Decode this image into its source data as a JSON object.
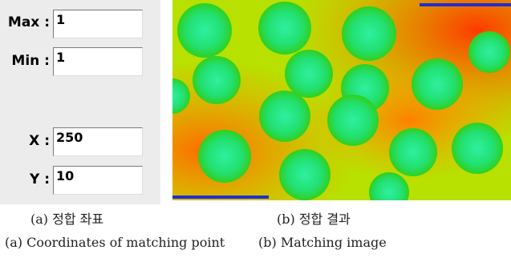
{
  "panel": {
    "fields": [
      {
        "label": "Max :",
        "value": "1"
      },
      {
        "label": "Min :",
        "value": "1"
      },
      {
        "label": "X :",
        "value": "250"
      },
      {
        "label": "Y :",
        "value": "10"
      }
    ]
  },
  "captions": {
    "korean": [
      "(a) 정합 좌표",
      "(b) 정합 결과"
    ],
    "english": [
      "(a) Coordinates of matching point",
      "(b) Matching image"
    ]
  }
}
